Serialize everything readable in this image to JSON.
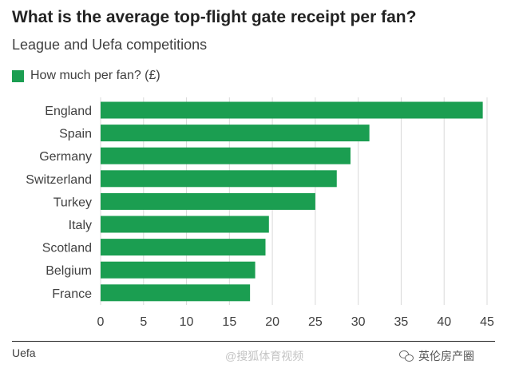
{
  "chart_data": {
    "type": "bar",
    "orientation": "horizontal",
    "title": "What is the average top-flight gate receipt per fan?",
    "subtitle": "League and Uefa competitions",
    "categories": [
      "England",
      "Spain",
      "Germany",
      "Switzerland",
      "Turkey",
      "Italy",
      "Scotland",
      "Belgium",
      "France"
    ],
    "series": [
      {
        "name": "How much per fan? (£)",
        "values": [
          44.5,
          31.3,
          29.1,
          27.5,
          25.0,
          19.6,
          19.2,
          18.0,
          17.4
        ]
      }
    ],
    "xlim": [
      0,
      45
    ],
    "xticks": [
      0,
      5,
      10,
      15,
      20,
      25,
      30,
      35,
      40,
      45
    ],
    "grid": true,
    "legend_position": "top-left",
    "bar_color": "#1b9e51",
    "grid_color": "#d9d9d9",
    "source": "Uefa"
  },
  "watermarks": {
    "center": "@搜狐体育视频",
    "right": "英伦房产圈"
  }
}
